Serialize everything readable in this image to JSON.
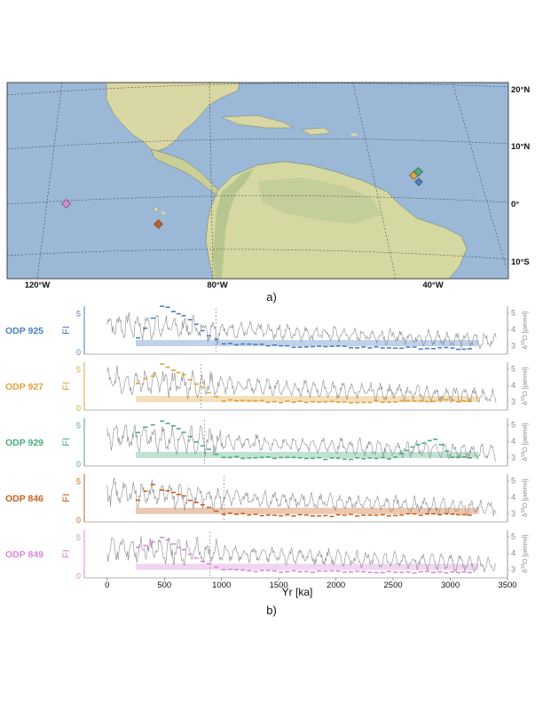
{
  "map": {
    "lat_labels": [
      "20°N",
      "10°N",
      "0°",
      "10°S"
    ],
    "lon_labels": [
      "120°W",
      "80°W",
      "40°W"
    ],
    "markers": [
      {
        "site": "ODP 925",
        "color": "#4a7fc1"
      },
      {
        "site": "ODP 927",
        "color": "#e0a23a"
      },
      {
        "site": "ODP 929",
        "color": "#4aab7d"
      },
      {
        "site": "ODP 846",
        "color": "#c8601f"
      },
      {
        "site": "ODP 849",
        "color": "#d68ad6"
      }
    ],
    "panel_label": "a)"
  },
  "timeseries": {
    "panel_label": "b)",
    "xlabel": "Yr [ka]",
    "x_ticks": [
      "0",
      "500",
      "1000",
      "1500",
      "2000",
      "2500",
      "3000",
      "3500"
    ],
    "left_axis_label": "FI",
    "right_axis_label": "δ18O [permil]",
    "right_axis_label_parts": {
      "pre": "δ",
      "sup": "18",
      "post": "O [permil]"
    }
  },
  "chart_data": {
    "type": "line",
    "xlim": [
      -200,
      3500
    ],
    "xlabel": "Yr [ka]",
    "panels": [
      {
        "name": "ODP 925",
        "color": "#4a7fc1",
        "fi_ticks": [
          "0",
          "5"
        ],
        "d18o_ticks": [
          "3",
          "4",
          "5"
        ],
        "fi_levels": [
          [
            250,
            2.0
          ],
          [
            380,
            4.5
          ],
          [
            460,
            6.0
          ],
          [
            560,
            5.4
          ],
          [
            650,
            4.8
          ],
          [
            760,
            3.6
          ],
          [
            870,
            2.2
          ],
          [
            1000,
            1.2
          ],
          [
            1500,
            0.8
          ],
          [
            2000,
            0.7
          ],
          [
            2500,
            0.6
          ],
          [
            3000,
            0.5
          ],
          [
            3200,
            0.4
          ]
        ],
        "band": [
          250,
          3250
        ],
        "vline": 950
      },
      {
        "name": "ODP 927",
        "color": "#e0a23a",
        "fi_ticks": [
          "0",
          "5"
        ],
        "d18o_ticks": [
          "3",
          "4",
          "5"
        ],
        "fi_levels": [
          [
            250,
            3.2
          ],
          [
            380,
            4.2
          ],
          [
            460,
            5.8
          ],
          [
            560,
            5.0
          ],
          [
            650,
            4.4
          ],
          [
            760,
            3.2
          ],
          [
            870,
            2.0
          ],
          [
            1000,
            1.0
          ],
          [
            1500,
            0.8
          ],
          [
            2000,
            0.8
          ],
          [
            2500,
            0.9
          ],
          [
            3000,
            1.0
          ],
          [
            3200,
            0.9
          ]
        ],
        "band": [
          250,
          3250
        ],
        "vline": 820
      },
      {
        "name": "ODP 929",
        "color": "#4aab7d",
        "fi_ticks": [
          "0",
          "5"
        ],
        "d18o_ticks": [
          "3",
          "4",
          "5"
        ],
        "fi_levels": [
          [
            250,
            4.2
          ],
          [
            380,
            5.2
          ],
          [
            460,
            5.6
          ],
          [
            560,
            4.9
          ],
          [
            650,
            4.1
          ],
          [
            760,
            3.0
          ],
          [
            870,
            1.8
          ],
          [
            1000,
            0.9
          ],
          [
            1500,
            0.8
          ],
          [
            2000,
            0.7
          ],
          [
            2500,
            0.8
          ],
          [
            2700,
            2.6
          ],
          [
            2850,
            3.3
          ],
          [
            3000,
            1.0
          ],
          [
            3200,
            0.8
          ]
        ],
        "band": [
          250,
          3250
        ],
        "vline": 850
      },
      {
        "name": "ODP 846",
        "color": "#c8601f",
        "fi_ticks": [
          "0",
          "5"
        ],
        "d18o_ticks": [
          "3",
          "4",
          "5"
        ],
        "fi_levels": [
          [
            250,
            2.7
          ],
          [
            380,
            4.6
          ],
          [
            460,
            4.0
          ],
          [
            560,
            3.6
          ],
          [
            650,
            3.0
          ],
          [
            760,
            2.2
          ],
          [
            870,
            1.6
          ],
          [
            1000,
            0.8
          ],
          [
            1500,
            0.6
          ],
          [
            2000,
            0.6
          ],
          [
            2500,
            0.7
          ],
          [
            3000,
            0.8
          ],
          [
            3200,
            0.7
          ]
        ],
        "band": [
          250,
          3250
        ],
        "vline": 1020
      },
      {
        "name": "ODP 849",
        "color": "#d68ad6",
        "fi_ticks": [
          "0",
          "5"
        ],
        "d18o_ticks": [
          "3",
          "4",
          "5"
        ],
        "fi_levels": [
          [
            250,
            3.6
          ],
          [
            380,
            4.4
          ],
          [
            460,
            5.0
          ],
          [
            560,
            4.2
          ],
          [
            650,
            3.4
          ],
          [
            760,
            2.4
          ],
          [
            870,
            1.6
          ],
          [
            1000,
            0.8
          ],
          [
            1500,
            0.6
          ],
          [
            2000,
            0.6
          ],
          [
            2500,
            0.5
          ],
          [
            3000,
            0.5
          ],
          [
            3200,
            0.4
          ]
        ],
        "band": [
          250,
          3250
        ],
        "vline": 900
      }
    ],
    "d18o_trend": {
      "start_value": 4.3,
      "end_value": 3.3,
      "x_end": 3400
    }
  },
  "colors": {
    "ocean": "#9bb8d6",
    "land": "#d8d6a3",
    "land_dark": "#b6c48c",
    "grey_line": "#8a8a8a"
  }
}
